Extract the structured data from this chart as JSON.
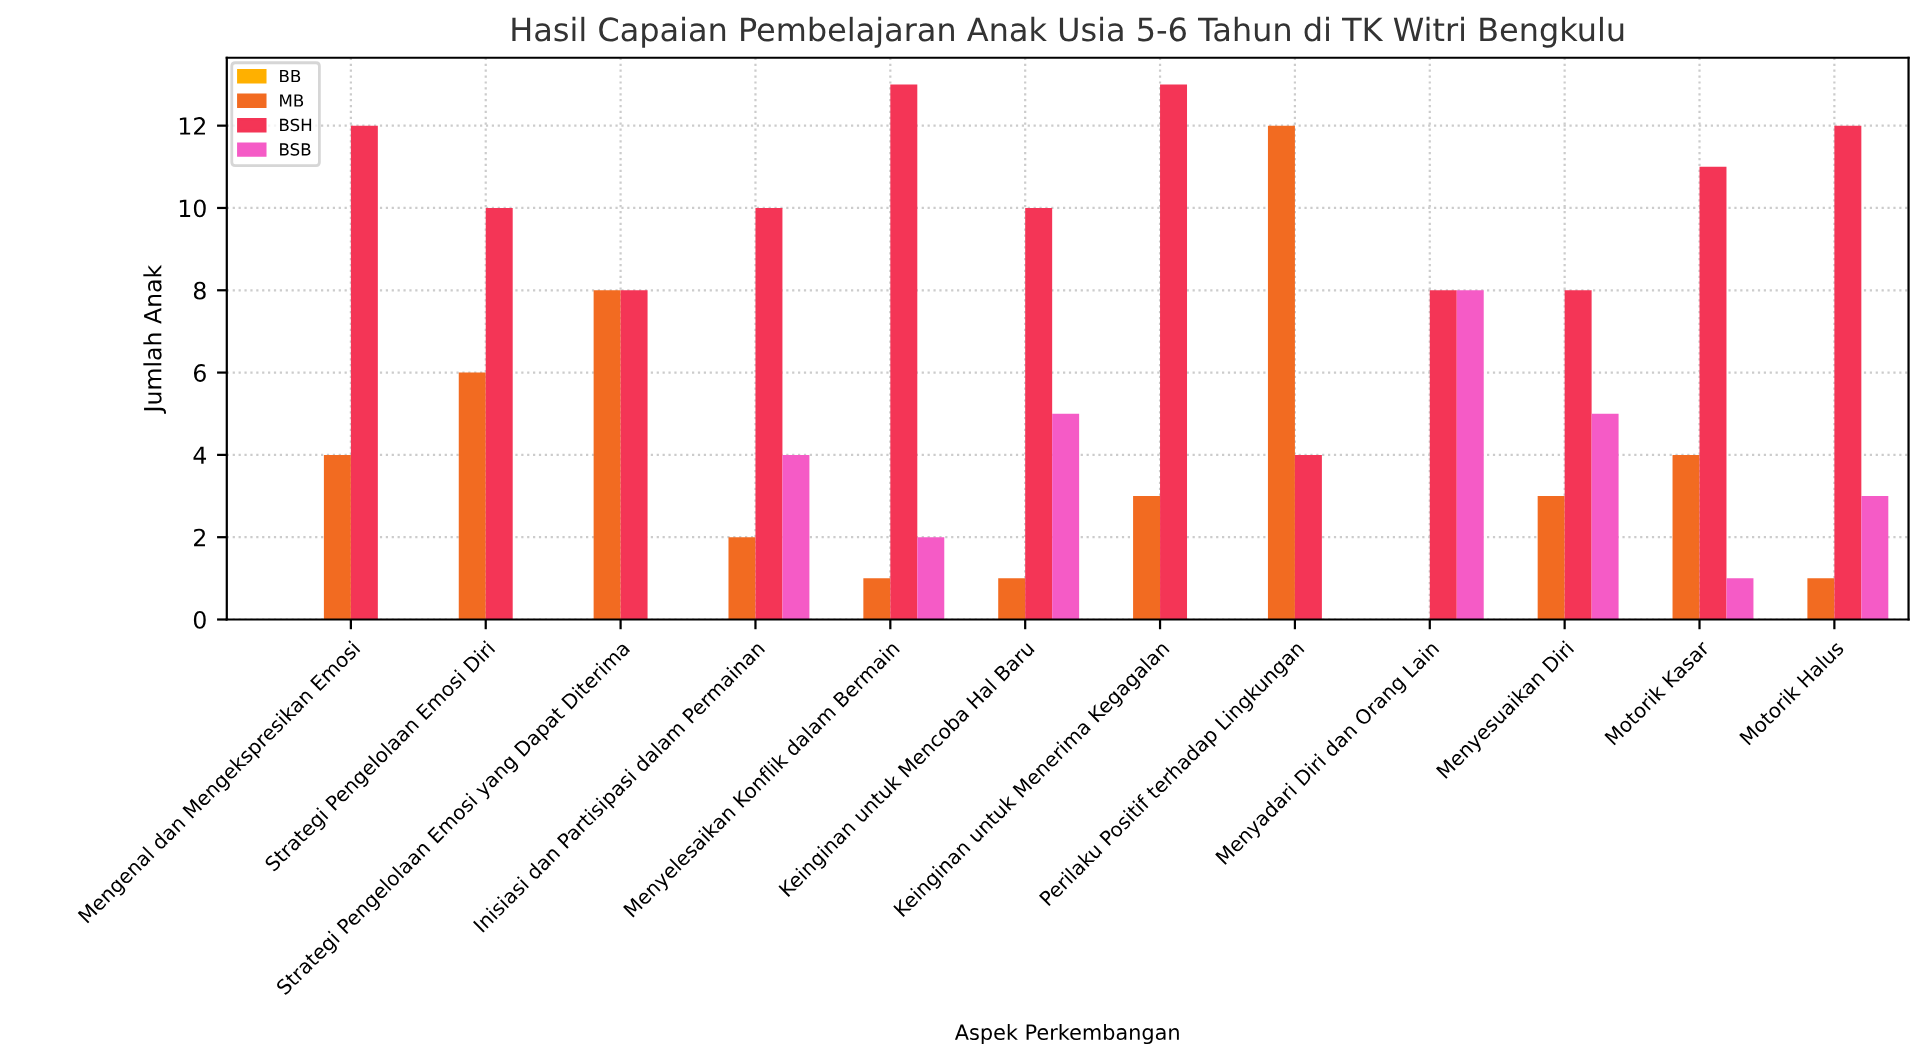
{
  "chart_data": {
    "type": "bar",
    "title": "Hasil Capaian Pembelajaran Anak Usia 5-6 Tahun di TK Witri Bengkulu",
    "xlabel": "Aspek Perkembangan",
    "ylabel": "Jumlah Anak",
    "categories": [
      "Mengenal dan Mengekspresikan Emosi",
      "Strategi Pengelolaan Emosi Diri",
      "Strategi Pengelolaan Emosi yang Dapat Diterima",
      "Inisiasi dan Partisipasi dalam Permainan",
      "Menyelesaikan Konflik dalam Bermain",
      "Keinginan untuk Mencoba Hal Baru",
      "Keinginan untuk Menerima Kegagalan",
      "Perilaku Positif terhadap Lingkungan",
      "Menyadari Diri dan Orang Lain",
      "Menyesuaikan Diri",
      "Motorik Kasar",
      "Motorik Halus"
    ],
    "series": [
      {
        "name": "BB",
        "color": "#ffb000",
        "values": [
          0,
          0,
          0,
          0,
          0,
          0,
          0,
          0,
          0,
          0,
          0,
          0
        ]
      },
      {
        "name": "MB",
        "color": "#f26b21",
        "values": [
          4,
          6,
          8,
          2,
          1,
          1,
          3,
          12,
          0,
          3,
          4,
          1
        ]
      },
      {
        "name": "BSH",
        "color": "#f43556",
        "values": [
          12,
          10,
          8,
          10,
          13,
          10,
          13,
          4,
          8,
          8,
          11,
          12
        ]
      },
      {
        "name": "BSB",
        "color": "#f55bc6",
        "values": [
          0,
          0,
          0,
          4,
          2,
          5,
          0,
          0,
          8,
          5,
          1,
          3
        ]
      }
    ],
    "ylim": [
      0,
      13.65
    ],
    "yticks": [
      0,
      2,
      4,
      6,
      8,
      10,
      12
    ],
    "grid": true,
    "legend": "top left"
  }
}
